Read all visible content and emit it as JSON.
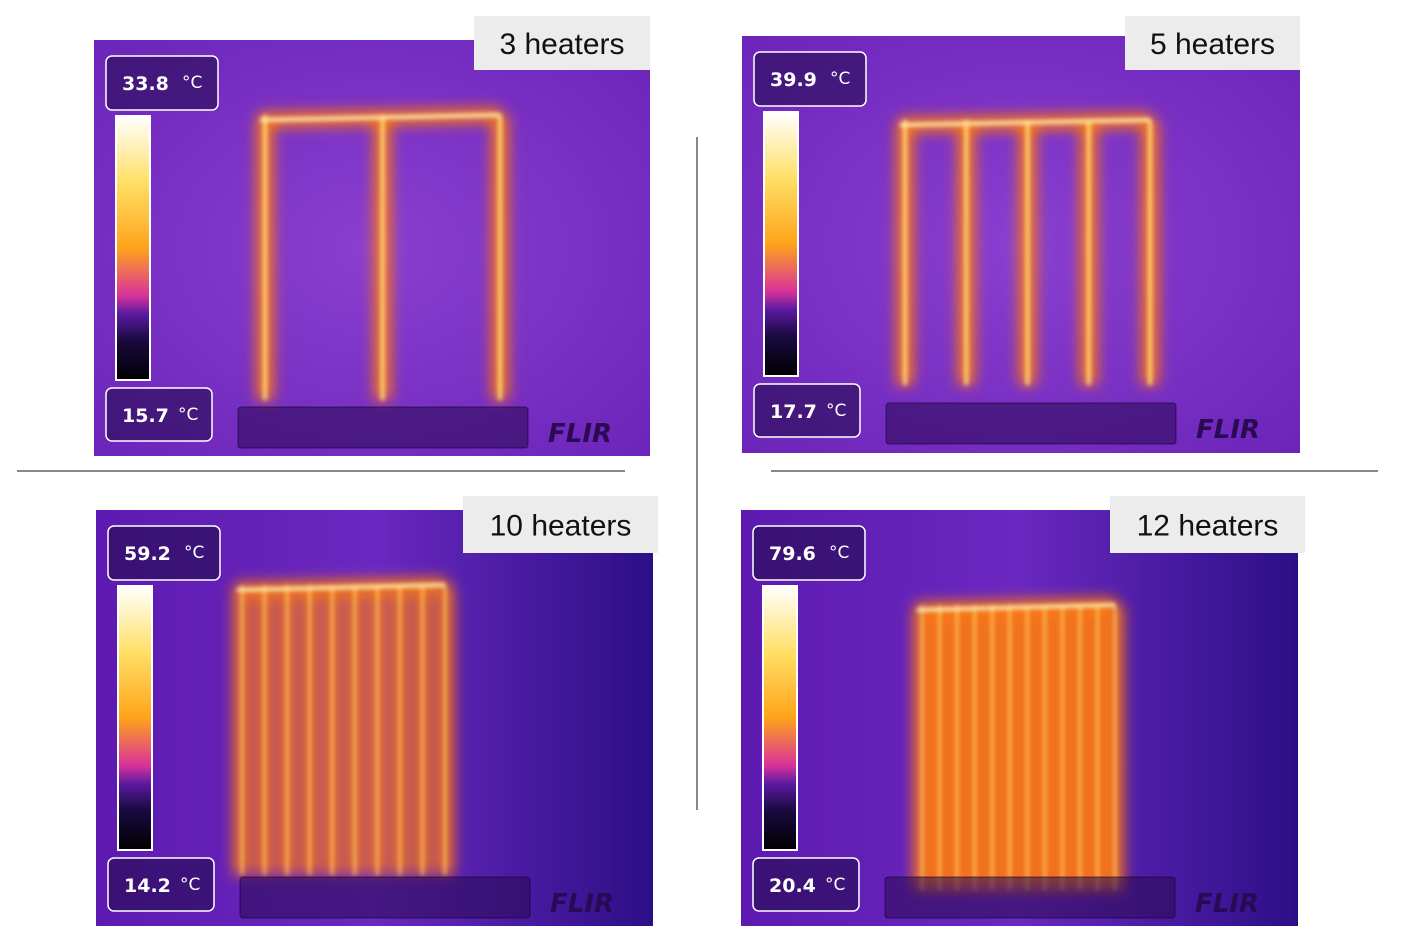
{
  "panels": [
    {
      "label": "3 heaters",
      "max": {
        "value": 33.8,
        "unit": "°C"
      },
      "min": {
        "value": 15.7,
        "unit": "°C"
      },
      "logo": "FLIR"
    },
    {
      "label": "5 heaters",
      "max": {
        "value": 39.9,
        "unit": "°C"
      },
      "min": {
        "value": 17.7,
        "unit": "°C"
      },
      "logo": "FLIR"
    },
    {
      "label": "10 heaters",
      "max": {
        "value": 59.2,
        "unit": "°C"
      },
      "min": {
        "value": 14.2,
        "unit": "°C"
      },
      "logo": "FLIR"
    },
    {
      "label": "12 heaters",
      "max": {
        "value": 79.6,
        "unit": "°C"
      },
      "min": {
        "value": 20.4,
        "unit": "°C"
      },
      "logo": "FLIR"
    }
  ]
}
